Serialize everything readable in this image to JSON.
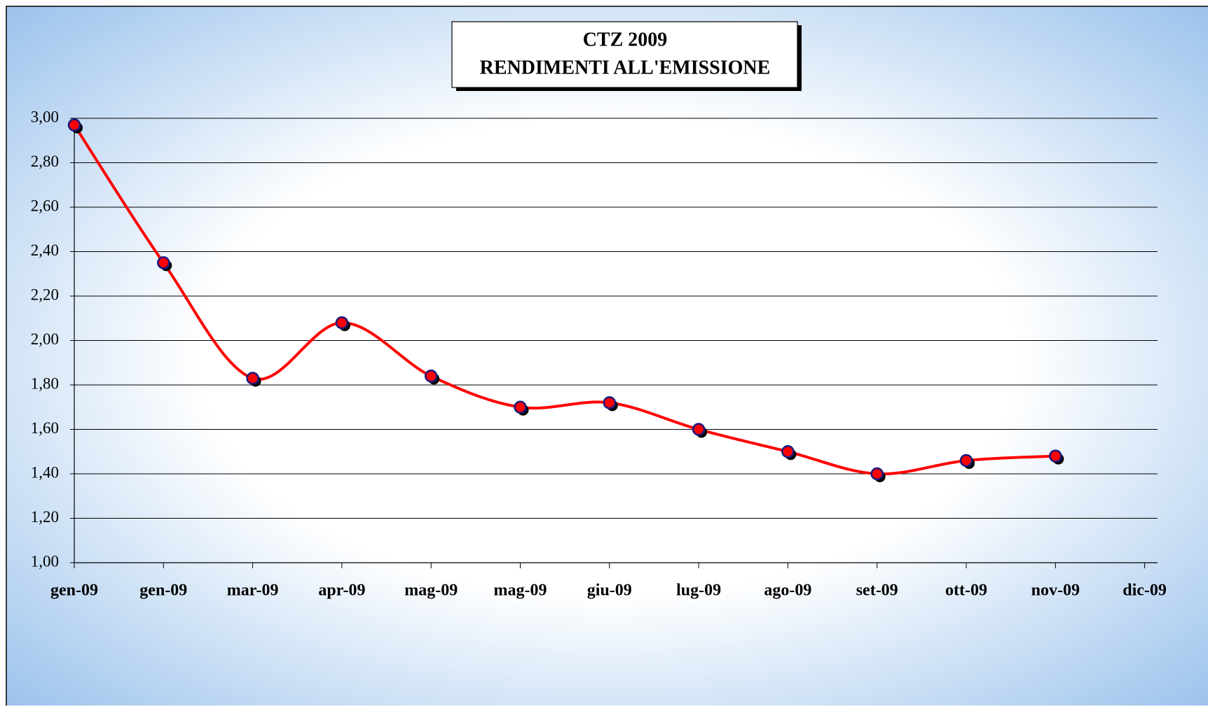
{
  "chart_data": {
    "type": "line",
    "title": "CTZ  2009",
    "subtitle": "RENDIMENTI  ALL'EMISSIONE",
    "categories": [
      "gen-09",
      "gen-09",
      "mar-09",
      "apr-09",
      "mag-09",
      "mag-09",
      "giu-09",
      "lug-09",
      "ago-09",
      "set-09",
      "ott-09",
      "nov-09",
      "dic-09"
    ],
    "series": [
      {
        "color": "#ff0000",
        "marker_color": "#ff0000",
        "marker_edge": "#1a1a80",
        "values": [
          2.97,
          2.35,
          1.83,
          2.08,
          1.84,
          1.7,
          1.72,
          1.6,
          1.5,
          1.4,
          1.46,
          1.48,
          null
        ]
      }
    ],
    "ylim": [
      1,
      3
    ],
    "yticks": [
      {
        "value": 1,
        "label": "1,00"
      },
      {
        "value": 1.2,
        "label": "1,20"
      },
      {
        "value": 1.4,
        "label": "1,40"
      },
      {
        "value": 1.6,
        "label": "1,60"
      },
      {
        "value": 1.8,
        "label": "1,80"
      },
      {
        "value": 2,
        "label": "2,00"
      },
      {
        "value": 2.2,
        "label": "2,20"
      },
      {
        "value": 2.4,
        "label": "2,40"
      },
      {
        "value": 2.6,
        "label": "2,60"
      },
      {
        "value": 2.8,
        "label": "2,80"
      },
      {
        "value": 3,
        "label": "3,00"
      }
    ],
    "grid": true,
    "smooth": true
  }
}
